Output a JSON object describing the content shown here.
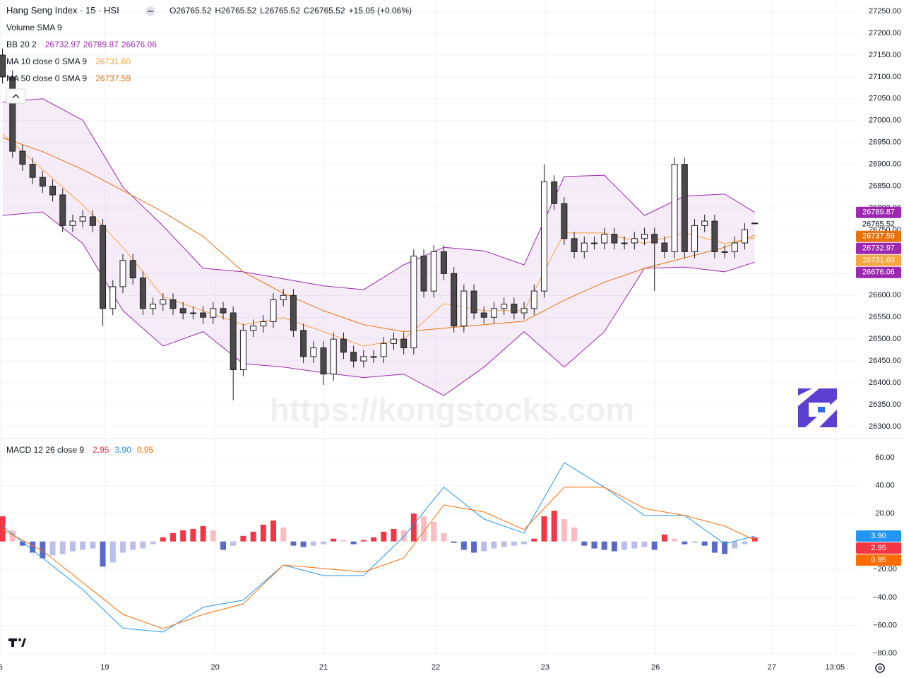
{
  "header": {
    "symbol": "Hang Seng Index · 15 · HSI",
    "ohlc_labels": [
      "O",
      "H",
      "L",
      "C"
    ],
    "change": "+15.05 (+0.06%)",
    "volume_legend": "Volume SMA 9",
    "watermark": "https://kongstocks.com"
  },
  "chart_data": [
    {
      "type": "candlestick",
      "up_color": "#ffffff",
      "down_color": "#4a4a4a",
      "border_color": "#1e1e1e",
      "grid": true,
      "xlim": [
        -0.25,
        85.3
      ],
      "ylim": [
        26274,
        27276
      ],
      "yticks": [
        {
          "value": 26300,
          "label": "26300.00"
        },
        {
          "value": 26350,
          "label": "26350.00"
        },
        {
          "value": 26400,
          "label": "26400.00"
        },
        {
          "value": 26450,
          "label": "26450.00"
        },
        {
          "value": 26500,
          "label": "26500.00"
        },
        {
          "value": 26550,
          "label": "26550.00"
        },
        {
          "value": 26600,
          "label": "26600.00"
        },
        {
          "value": 26650,
          "label": "26650.00"
        },
        {
          "value": 26700,
          "label": "26700.00"
        },
        {
          "value": 26750,
          "label": "26750.00"
        },
        {
          "value": 26800,
          "label": "26800.00"
        },
        {
          "value": 26850,
          "label": "26850.00"
        },
        {
          "value": 26900,
          "label": "26900.00"
        },
        {
          "value": 26950,
          "label": "26950.00"
        },
        {
          "value": 27000,
          "label": "27000.00"
        },
        {
          "value": 27050,
          "label": "27050.00"
        },
        {
          "value": 27100,
          "label": "27100.00"
        },
        {
          "value": 27150,
          "label": "27150.00"
        },
        {
          "value": 27200,
          "label": "27200.00"
        },
        {
          "value": 27250,
          "label": "27250.00"
        }
      ],
      "x": [
        0,
        1,
        2,
        3,
        4,
        5,
        6,
        7,
        8,
        9,
        10,
        11,
        12,
        13,
        14,
        15,
        16,
        17,
        18,
        19,
        20,
        21,
        22,
        23,
        24,
        25,
        26,
        27,
        28,
        29,
        30,
        31,
        32,
        33,
        34,
        35,
        36,
        37,
        38,
        39,
        40,
        41,
        42,
        43,
        44,
        45,
        46,
        47,
        48,
        49,
        50,
        51,
        52,
        53,
        54,
        55,
        56,
        57,
        58,
        59,
        60,
        61,
        62,
        63,
        64,
        65,
        66,
        67,
        68,
        69,
        70,
        71,
        72,
        73,
        74,
        75
      ],
      "open": [
        27150,
        27100,
        26930,
        26900,
        26870,
        26850,
        26830,
        26760,
        26770,
        26780,
        26760,
        26570,
        26620,
        26680,
        26640,
        26570,
        26580,
        26590,
        26570,
        26560,
        26560,
        26550,
        26570,
        26560,
        26430,
        26520,
        26530,
        26540,
        26590,
        26600,
        26520,
        26460,
        26480,
        26420,
        26500,
        26470,
        26450,
        26460,
        26460,
        26490,
        26500,
        26480,
        26690,
        26610,
        26700,
        26650,
        26530,
        26610,
        26560,
        26550,
        26570,
        26580,
        26560,
        26570,
        26610,
        26860,
        26810,
        26730,
        26700,
        26720,
        26720,
        26740,
        26720,
        26720,
        26730,
        26740,
        26720,
        26700,
        26900,
        26700,
        26760,
        26770,
        26700,
        26700,
        26720,
        26765.52
      ],
      "high": [
        27165,
        27115,
        26945,
        26915,
        26885,
        26865,
        26845,
        26785,
        26795,
        26795,
        26775,
        26635,
        26695,
        26695,
        26655,
        26595,
        26605,
        26605,
        26585,
        26575,
        26575,
        26585,
        26585,
        26575,
        26535,
        26545,
        26555,
        26605,
        26615,
        26615,
        26535,
        26495,
        26495,
        26515,
        26515,
        26485,
        26475,
        26475,
        26505,
        26515,
        26515,
        26705,
        26705,
        26715,
        26715,
        26665,
        26625,
        26625,
        26575,
        26585,
        26595,
        26595,
        26585,
        26625,
        26900,
        26875,
        26825,
        26745,
        26735,
        26735,
        26755,
        26755,
        26735,
        26745,
        26755,
        26755,
        26735,
        26915,
        26915,
        26775,
        26785,
        26785,
        26715,
        26735,
        26765,
        26765.52
      ],
      "low": [
        27085,
        26915,
        26885,
        26855,
        26835,
        26815,
        26745,
        26745,
        26755,
        26745,
        26530,
        26555,
        26605,
        26625,
        26555,
        26555,
        26565,
        26555,
        26545,
        26545,
        26535,
        26535,
        26545,
        26360,
        26415,
        26505,
        26515,
        26525,
        26575,
        26505,
        26445,
        26445,
        26395,
        26405,
        26455,
        26435,
        26435,
        26445,
        26445,
        26475,
        26465,
        26465,
        26595,
        26595,
        26635,
        26515,
        26515,
        26545,
        26535,
        26535,
        26555,
        26545,
        26545,
        26555,
        26595,
        26795,
        26715,
        26685,
        26685,
        26705,
        26705,
        26705,
        26705,
        26705,
        26715,
        26610,
        26685,
        26685,
        26685,
        26685,
        26745,
        26685,
        26685,
        26685,
        26705,
        26765.52
      ],
      "close": [
        27100,
        26930,
        26900,
        26870,
        26850,
        26830,
        26760,
        26770,
        26780,
        26760,
        26570,
        26620,
        26680,
        26640,
        26570,
        26580,
        26590,
        26570,
        26560,
        26560,
        26550,
        26570,
        26560,
        26430,
        26520,
        26530,
        26540,
        26590,
        26600,
        26520,
        26460,
        26480,
        26420,
        26500,
        26470,
        26450,
        26460,
        26460,
        26490,
        26500,
        26480,
        26690,
        26610,
        26700,
        26650,
        26530,
        26610,
        26560,
        26550,
        26570,
        26580,
        26560,
        26570,
        26610,
        26860,
        26810,
        26730,
        26700,
        26720,
        26720,
        26740,
        26720,
        26720,
        26730,
        26740,
        26720,
        26700,
        26900,
        26700,
        26760,
        26770,
        26700,
        26700,
        26720,
        26750,
        26765.52
      ],
      "series": [
        {
          "name": "BB 20 2",
          "type": "band",
          "color": "#9c27b0",
          "fill": "rgba(156,39,176,0.09)",
          "basis_last": 26732.97,
          "x": [
            0,
            4,
            8,
            12,
            16,
            20,
            24,
            28,
            32,
            36,
            40,
            44,
            48,
            52,
            56,
            60,
            64,
            68,
            72,
            75
          ],
          "upper": [
            27042,
            27050,
            27001,
            26848,
            26759,
            26662,
            26654,
            26638,
            26622,
            26613,
            26670,
            26710,
            26702,
            26670,
            26872,
            26875,
            26783,
            26827,
            26832,
            26789.87
          ],
          "lower": [
            26783,
            26791,
            26719,
            26565,
            26484,
            26517,
            26444,
            26436,
            26423,
            26412,
            26420,
            26371,
            26436,
            26517,
            26436,
            26517,
            26662,
            26665,
            26654,
            26676.06
          ]
        },
        {
          "name": "MA 10 close 0 SMA 9",
          "type": "line",
          "color": "#f7a541",
          "x": [
            0,
            4,
            8,
            12,
            16,
            20,
            24,
            28,
            32,
            36,
            40,
            44,
            48,
            52,
            56,
            60,
            64,
            68,
            72,
            75
          ],
          "values": [
            26969,
            26888,
            26807,
            26710,
            26597,
            26565,
            26533,
            26549,
            26517,
            26484,
            26500,
            26581,
            26565,
            26565,
            26743,
            26743,
            26719,
            26743,
            26719,
            {
              "value": 26731.6,
              "label": "26731.60"
            }
          ]
        },
        {
          "name": "MA 50 close 0 SMA 9",
          "type": "line",
          "color": "#e8710a",
          "x": [
            0,
            4,
            8,
            12,
            16,
            20,
            24,
            28,
            32,
            36,
            40,
            44,
            48,
            52,
            56,
            60,
            64,
            68,
            72,
            75
          ],
          "values": [
            26961,
            26929,
            26888,
            26840,
            26791,
            26735,
            26654,
            26605,
            26565,
            26533,
            26517,
            26525,
            26533,
            26541,
            26589,
            26630,
            26662,
            26686,
            26710,
            26737.59
          ]
        }
      ]
    },
    {
      "type": "macd",
      "title": "MACD 12 26 close 9",
      "grid": true,
      "xlim": [
        -0.25,
        85.3
      ],
      "ylim": [
        -82.5,
        73.1
      ],
      "yticks": [
        {
          "value": 60,
          "label": "60.00"
        },
        {
          "value": 40,
          "label": "40.00"
        },
        {
          "value": 20,
          "label": "20.00"
        },
        {
          "value": -20,
          "label": "−20.00"
        },
        {
          "value": -40,
          "label": "−40.00"
        },
        {
          "value": -60,
          "label": "−60.00"
        },
        {
          "value": -80,
          "label": "−80.00"
        }
      ],
      "xticks": [
        {
          "value": -0.2,
          "label": "6"
        },
        {
          "value": 10.2,
          "label": "19"
        },
        {
          "value": 21.2,
          "label": "20"
        },
        {
          "value": 32,
          "label": "21"
        },
        {
          "value": 43.2,
          "label": "22"
        },
        {
          "value": 54.1,
          "label": "23"
        },
        {
          "value": 65.1,
          "label": "26"
        },
        {
          "value": 76.7,
          "label": "27"
        },
        {
          "value": 83,
          "label": "13:05"
        }
      ],
      "histogram_colors": {
        "pos_rising": "#f23645",
        "pos_falling": "#fdbcc2",
        "neg_falling": "#5b6ac8",
        "neg_rising": "#b9bfe8"
      },
      "x": [
        0,
        1,
        2,
        3,
        4,
        5,
        6,
        7,
        8,
        9,
        10,
        11,
        12,
        13,
        14,
        15,
        16,
        17,
        18,
        19,
        20,
        21,
        22,
        23,
        24,
        25,
        26,
        27,
        28,
        29,
        30,
        31,
        32,
        33,
        34,
        35,
        36,
        37,
        38,
        39,
        40,
        41,
        42,
        43,
        44,
        45,
        46,
        47,
        48,
        49,
        50,
        51,
        52,
        53,
        54,
        55,
        56,
        57,
        58,
        59,
        60,
        61,
        62,
        63,
        64,
        65,
        66,
        67,
        68,
        69,
        70,
        71,
        72,
        73,
        74,
        75
      ],
      "histogram": [
        18,
        8,
        -3,
        -8,
        -12,
        -10,
        -9,
        -7,
        -6,
        -5,
        -18,
        -15,
        -8,
        -6,
        -5,
        -2,
        3,
        6,
        8,
        9,
        11,
        8,
        -6,
        -3,
        4,
        7,
        12,
        15,
        10,
        -3,
        -4,
        -3,
        -2,
        2,
        1,
        -2,
        1,
        3,
        7,
        9,
        8,
        20,
        18,
        14,
        6,
        -1,
        -6,
        -8,
        -7,
        -5,
        -4,
        -3,
        -2,
        2,
        18,
        22,
        16,
        10,
        -3,
        -5,
        -6,
        -7,
        -6,
        -5,
        -4,
        -6,
        5,
        2,
        -2,
        -1,
        -3,
        -8,
        -9,
        -5,
        -2,
        2.95
      ],
      "histogram_color": "#f23645",
      "lines": [
        {
          "color": "#2196f3",
          "x": [
            0,
            4,
            8,
            12,
            16,
            20,
            24,
            28,
            32,
            36,
            40,
            44,
            48,
            52,
            56,
            60,
            64,
            68,
            72,
            75
          ],
          "values": [
            11,
            -11.8,
            -34.5,
            -62,
            -64.8,
            -47,
            -42,
            -16.8,
            -24.4,
            -24.4,
            3.4,
            38.8,
            16,
            6,
            56.5,
            38.8,
            18.6,
            18.6,
            -1.6,
            {
              "value": 3.9,
              "label": "3.90"
            }
          ]
        },
        {
          "color": "#ff6d00",
          "x": [
            0,
            4,
            8,
            12,
            16,
            20,
            24,
            28,
            32,
            36,
            40,
            44,
            48,
            52,
            56,
            60,
            64,
            68,
            72,
            75
          ],
          "values": [
            8.5,
            -6.7,
            -29.4,
            -52.2,
            -62.3,
            -52.2,
            -44.6,
            -16.8,
            -19.3,
            -21.9,
            -11.8,
            26.1,
            21.1,
            8.5,
            38.8,
            38.8,
            23.6,
            18.6,
            11,
            0.95
          ]
        }
      ]
    }
  ]
}
